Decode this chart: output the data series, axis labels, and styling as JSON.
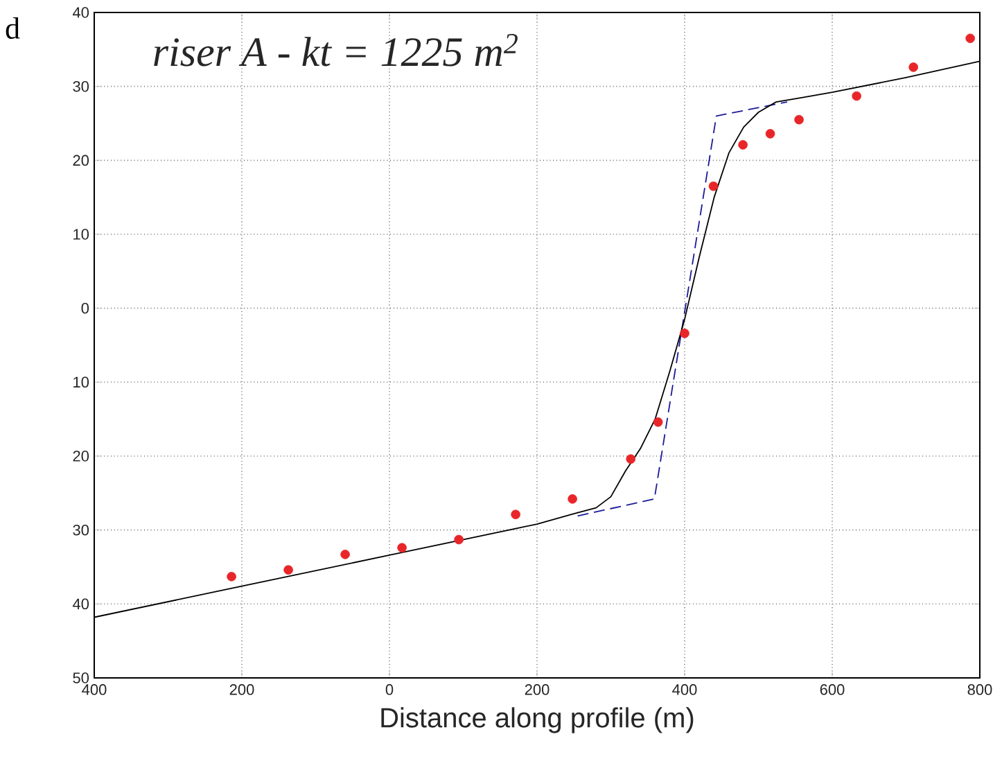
{
  "chart_data": {
    "type": "scatter",
    "title": "riser A - kt = 1225 m$^{2}$",
    "xlabel": "Distance along profile (m)",
    "annotations": [
      "d"
    ],
    "xlim": [
      -400,
      800
    ],
    "ylim": [
      -50,
      40
    ],
    "xticks": [
      {
        "value": -400,
        "label": "400"
      },
      {
        "value": -200,
        "label": "200"
      },
      0,
      200,
      400,
      600,
      800
    ],
    "yticks": [
      {
        "value": -50,
        "label": "50"
      },
      {
        "value": -40,
        "label": "40"
      },
      {
        "value": -30,
        "label": "30"
      },
      {
        "value": -20,
        "label": "20"
      },
      {
        "value": -10,
        "label": "10"
      },
      0,
      10,
      20,
      30,
      40
    ],
    "grid": true,
    "tick_labels": "xy",
    "series": [
      {
        "type": "line",
        "color": "#1a1a9a",
        "line_style": "dashed",
        "marker": "none",
        "x": [
          255,
          359,
          443,
          539
        ],
        "values": [
          -28.1,
          -25.8,
          26.0,
          27.9
        ]
      },
      {
        "type": "line",
        "color": "#000000",
        "line_style": "solid",
        "marker": "none",
        "x": [
          -400,
          -200,
          0,
          200,
          250,
          280,
          300,
          320,
          340,
          360,
          380,
          400,
          420,
          440,
          460,
          480,
          500,
          524,
          560,
          600,
          700,
          800
        ],
        "values": [
          -41.8,
          -37.6,
          -33.4,
          -29.2,
          -27.8,
          -27,
          -25.5,
          -22,
          -19,
          -15,
          -8.5,
          -1.5,
          7,
          15,
          21,
          24.5,
          26.5,
          27.9,
          28.5,
          29.2,
          31.2,
          33.4
        ]
      },
      {
        "color": "#e8262a",
        "marker": "circle",
        "x": [
          -214,
          -137,
          -60,
          17,
          94,
          171,
          248,
          327,
          364,
          400,
          439,
          479,
          516,
          555,
          633,
          710,
          787
        ],
        "values": [
          -36.3,
          -35.4,
          -33.3,
          -32.4,
          -31.3,
          -27.9,
          -25.8,
          -20.4,
          -15.4,
          -3.4,
          16.5,
          22.1,
          23.6,
          25.5,
          28.7,
          32.6,
          36.5
        ]
      }
    ]
  }
}
